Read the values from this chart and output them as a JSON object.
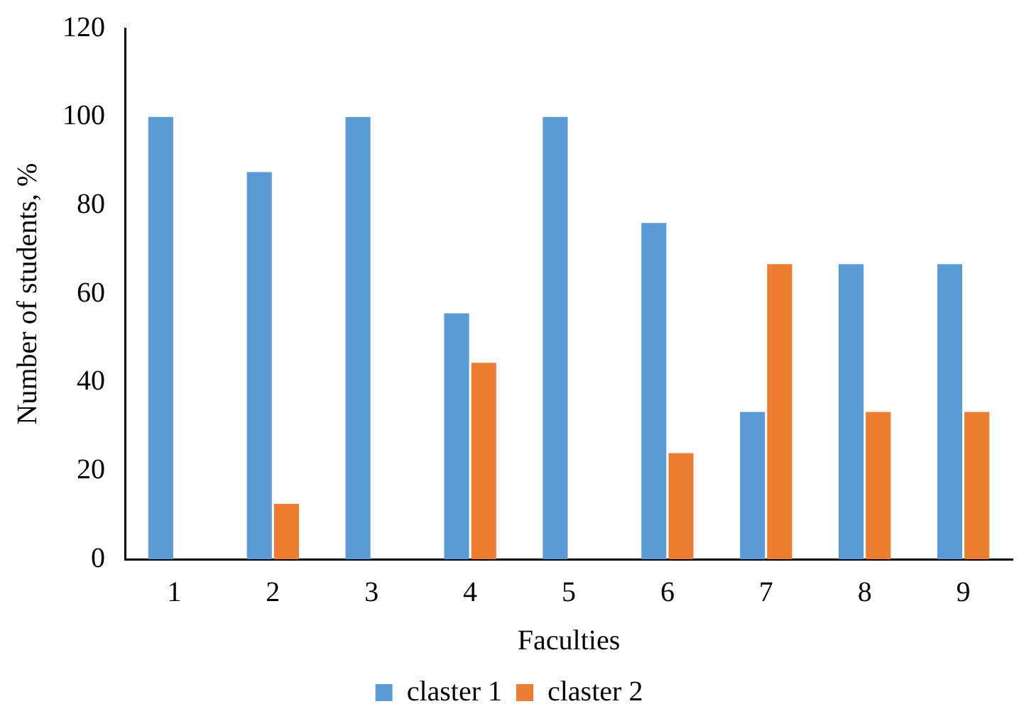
{
  "chart_data": {
    "type": "bar",
    "xlabel": "Faculties",
    "ylabel": "Number of students, %",
    "categories": [
      "1",
      "2",
      "3",
      "4",
      "5",
      "6",
      "7",
      "8",
      "9"
    ],
    "series": [
      {
        "name": "claster 1",
        "color": "#5b9bd5",
        "values": [
          100,
          87.5,
          100,
          55.6,
          100,
          76,
          33.3,
          66.7,
          66.7
        ]
      },
      {
        "name": "claster 2",
        "color": "#ed7d31",
        "values": [
          0,
          12.5,
          0,
          44.4,
          0,
          24,
          66.7,
          33.3,
          33.3
        ]
      }
    ],
    "ylim": [
      0,
      120
    ],
    "yticks": [
      0,
      20,
      40,
      60,
      80,
      100,
      120
    ],
    "grid": false,
    "legend": "bottom"
  }
}
